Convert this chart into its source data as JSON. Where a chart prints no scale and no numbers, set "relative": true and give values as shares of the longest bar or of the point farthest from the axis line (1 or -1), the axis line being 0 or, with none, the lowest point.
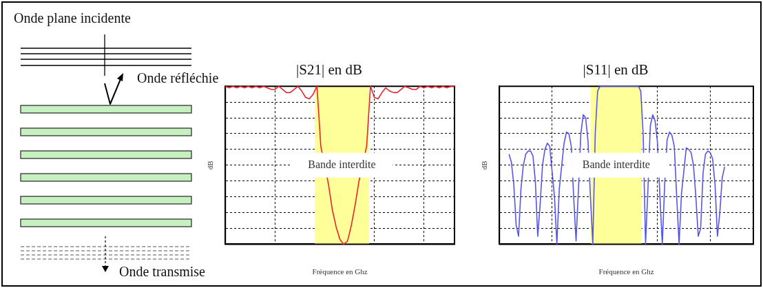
{
  "chart_data": [
    {
      "type": "other",
      "annotations": [
        "Onde plane incidente",
        "Onde réfléchie",
        "Onde transmise"
      ]
    },
    {
      "type": "line",
      "title": "|S21| en dB",
      "xlabel": "Fréquence en Ghz",
      "ylabel": "dB",
      "relative": true,
      "grid": true,
      "marker": "none",
      "categories": [
        null,
        null,
        null,
        null,
        null,
        null,
        null,
        null,
        null,
        null,
        null,
        null,
        null,
        null,
        null,
        null,
        null,
        null,
        null,
        null,
        null,
        null,
        null,
        null,
        null,
        null,
        null,
        null,
        null,
        null,
        null,
        null,
        null,
        null,
        null,
        null,
        null,
        null,
        null,
        null,
        null,
        null,
        null,
        null,
        null,
        null,
        null,
        null,
        null,
        null,
        null,
        null,
        null,
        null,
        null,
        null,
        null,
        null,
        null,
        null,
        null
      ],
      "series": [
        {
          "color": "#e8242a",
          "values": [
            1,
            0.99,
            1,
            0.99,
            1,
            0.99,
            1,
            0.99,
            1,
            0.99,
            1,
            0.99,
            0.98,
            0.98,
            1,
            0.98,
            0.96,
            0.96,
            0.98,
            1,
            0.97,
            0.93,
            0.92,
            0.95,
            1,
            0.62,
            null,
            0.38,
            0.22,
            0.11,
            0.03,
            0,
            0.02,
            0.12,
            0.25,
            0.4,
            null,
            0.62,
            1,
            0.93,
            0.92,
            0.96,
            0.99,
            0.97,
            0.96,
            0.96,
            0.98,
            1,
            0.99,
            0.98,
            0.98,
            1,
            0.99,
            1,
            0.99,
            1,
            0.99,
            1,
            0.99,
            1,
            1
          ]
        }
      ],
      "annotations": [
        "Bande interdite"
      ]
    },
    {
      "type": "line",
      "title": "|S11| en dB",
      "xlabel": "Fréquence en Ghz",
      "ylabel": "dB",
      "relative": true,
      "grid": true,
      "marker": "none",
      "categories": [
        null,
        null,
        null,
        null,
        null,
        null,
        null,
        null,
        null,
        null,
        null,
        null,
        null,
        null,
        null,
        null,
        null,
        null,
        null,
        null,
        null,
        null,
        null,
        null,
        null,
        null,
        null,
        null,
        null,
        null,
        null,
        null,
        null,
        null,
        null,
        null,
        null,
        null,
        null,
        null,
        null,
        null,
        null,
        null,
        null,
        null,
        null,
        null,
        null,
        null,
        null,
        null,
        null,
        null,
        null,
        null,
        null,
        null,
        null,
        null,
        null,
        null,
        null,
        null,
        null,
        null,
        null,
        null,
        null,
        null,
        null,
        null,
        null,
        null,
        null,
        null,
        null,
        null,
        null,
        null,
        null,
        null,
        null,
        null,
        null,
        null,
        null,
        null,
        null,
        null,
        null,
        null,
        null,
        null,
        null,
        null,
        null,
        null,
        null,
        null,
        null,
        null,
        null,
        null,
        null,
        null,
        null
      ],
      "series": [
        {
          "color": "#5555ee",
          "values": [
            null,
            null,
            null,
            null,
            0.57,
            0.52,
            0.38,
            0.12,
            0.05,
            0.35,
            0.5,
            0.57,
            0.59,
            0.59,
            0.56,
            0.4,
            0.05,
            0.25,
            0.5,
            0.6,
            0.64,
            0.62,
            null,
            0.3,
            0,
            0.35,
            null,
            0.64,
            0.71,
            0.7,
            0.62,
            0.3,
            0.02,
            0.35,
            0.7,
            0.82,
            0.8,
            0.65,
            0.3,
            0,
            0.7,
            0.97,
            1,
            1,
            1,
            1,
            1,
            1,
            1,
            1,
            1,
            1,
            1,
            1,
            1,
            1,
            1,
            1,
            1,
            0.97,
            0.7,
            0,
            0.35,
            0.75,
            0.82,
            0.78,
            0.64,
            0.3,
            0,
            0.38,
            0.66,
            0.71,
            0.69,
            0.62,
            0.3,
            0,
            0.32,
            null,
            0.61,
            0.6,
            0.58,
            0.5,
            0.3,
            0.05,
            0.1,
            0.45,
            0.57,
            0.59,
            0.58,
            0.54,
            0.38,
            0.05,
            0.2,
            0.42,
            0.49,
            null,
            null,
            null,
            null,
            null,
            null,
            null,
            null,
            null,
            null,
            null,
            null
          ]
        }
      ],
      "annotations": [
        "Bande interdite"
      ]
    }
  ]
}
